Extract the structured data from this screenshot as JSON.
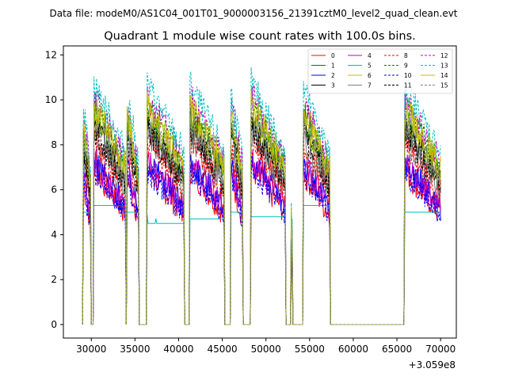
{
  "chart_data": {
    "type": "line",
    "suptitle": "Data file: modeM0/AS1C04_001T01_9000003156_21391cztM0_level2_quad_clean.evt",
    "title": "Quadrant 1 module wise count rates with 100.0s bins.",
    "xlabel": "",
    "ylabel": "",
    "offset_label": "+3.059e8",
    "xlim": [
      26800,
      71800
    ],
    "ylim": [
      -0.6,
      12.4
    ],
    "xticks": [
      30000,
      35000,
      40000,
      45000,
      50000,
      55000,
      60000,
      65000,
      70000
    ],
    "yticks": [
      0,
      2,
      4,
      6,
      8,
      10,
      12
    ],
    "legend_position": "top-right",
    "orbit_segments": [
      {
        "start": 29100,
        "end": 29900,
        "peak": 10.0,
        "tail": 5.5
      },
      {
        "start": 30300,
        "end": 33900,
        "peak": 11.0,
        "tail": 5.8
      },
      {
        "start": 34100,
        "end": 35400,
        "peak": 10.5,
        "tail": 5.5
      },
      {
        "start": 36400,
        "end": 40600,
        "peak": 11.0,
        "tail": 5.0
      },
      {
        "start": 41300,
        "end": 45200,
        "peak": 11.0,
        "tail": 5.2
      },
      {
        "start": 46000,
        "end": 47300,
        "peak": 10.6,
        "tail": 5.5
      },
      {
        "start": 48300,
        "end": 52200,
        "peak": 11.1,
        "tail": 5.3
      },
      {
        "start": 52900,
        "end": 53000,
        "peak": 5.4,
        "tail": 5.2
      },
      {
        "start": 54300,
        "end": 57300,
        "peak": 10.8,
        "tail": 5.8
      },
      {
        "start": 65900,
        "end": 70000,
        "peak": 10.9,
        "tail": 5.5
      }
    ],
    "series": [
      {
        "name": "0",
        "color": "#ff0000",
        "dash": "solid",
        "level": 6.6
      },
      {
        "name": "1",
        "color": "#008000",
        "dash": "solid",
        "level": 8.8
      },
      {
        "name": "2",
        "color": "#0000ff",
        "dash": "solid",
        "level": 7.0
      },
      {
        "name": "3",
        "color": "#000000",
        "dash": "solid",
        "level": 8.4
      },
      {
        "name": "4",
        "color": "#bf00bf",
        "dash": "solid",
        "level": 6.9
      },
      {
        "name": "5",
        "color": "#00bfbf",
        "dash": "solid",
        "level": 5.4
      },
      {
        "name": "6",
        "color": "#bfbf00",
        "dash": "solid",
        "level": 8.9
      },
      {
        "name": "7",
        "color": "#808080",
        "dash": "solid",
        "level": 8.0
      },
      {
        "name": "8",
        "color": "#ff0000",
        "dash": "dashed",
        "level": 7.8
      },
      {
        "name": "9",
        "color": "#008000",
        "dash": "dashed",
        "level": 9.4
      },
      {
        "name": "10",
        "color": "#0000ff",
        "dash": "dashed",
        "level": 6.6
      },
      {
        "name": "11",
        "color": "#000000",
        "dash": "dashed",
        "level": 8.3
      },
      {
        "name": "12",
        "color": "#bf00bf",
        "dash": "dashed",
        "level": 9.7
      },
      {
        "name": "13",
        "color": "#00bfbf",
        "dash": "dashed",
        "level": 10.2
      },
      {
        "name": "14",
        "color": "#bfbf00",
        "dash": "solid",
        "level": 9.3
      },
      {
        "name": "15",
        "color": "#808080",
        "dash": "dashed",
        "level": 8.6
      }
    ]
  }
}
